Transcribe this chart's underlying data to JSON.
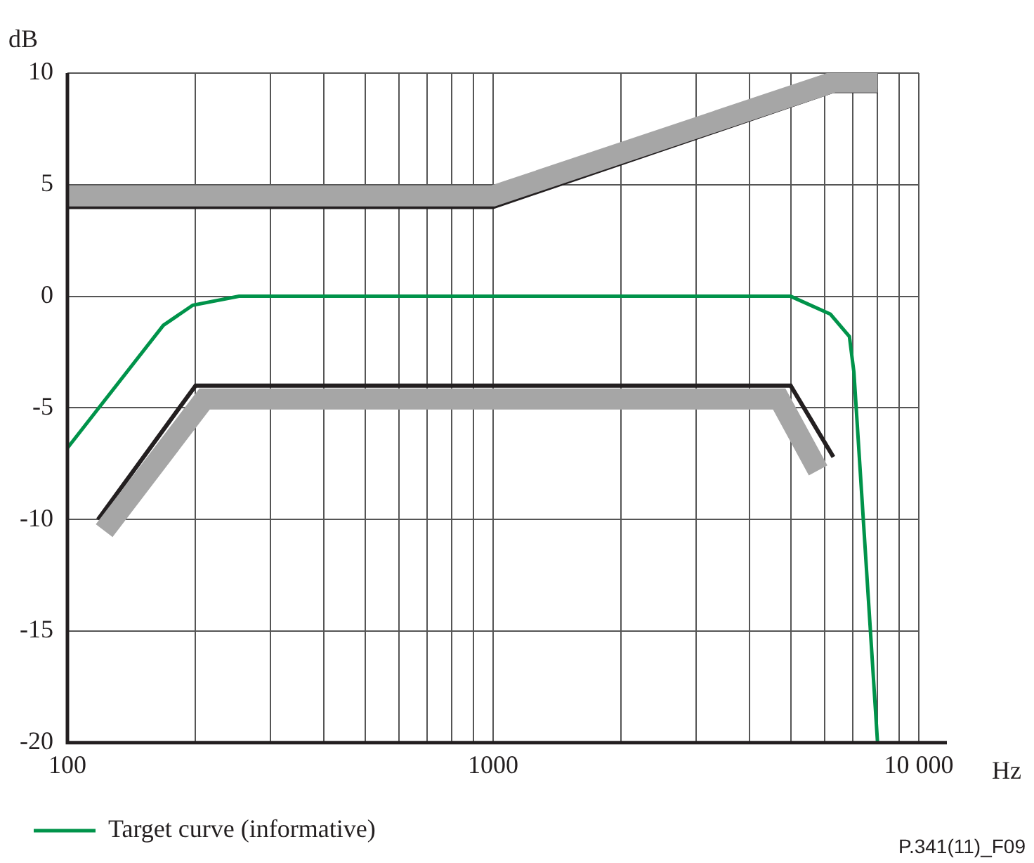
{
  "chart_data": {
    "type": "line",
    "xlabel": "Hz",
    "ylabel": "dB",
    "log": "x",
    "series": [
      {
        "color": "#a6a6a6",
        "x": [
          100,
          1000,
          6300,
          8000
        ],
        "values": [
          4.5,
          4.5,
          9.6,
          9.6
        ]
      },
      {
        "color": "#a6a6a6",
        "x": [
          122,
          210,
          4700,
          5800
        ],
        "values": [
          -10.5,
          -4.6,
          -4.6,
          -7.8
        ]
      },
      {
        "color": "#231f20",
        "x": [
          100,
          1000,
          6300,
          8000
        ],
        "values": [
          4,
          4,
          9.2,
          9.2
        ]
      },
      {
        "color": "#231f20",
        "x": [
          118,
          200,
          5000,
          6300
        ],
        "values": [
          -10,
          -4,
          -4,
          -7.2
        ]
      },
      {
        "name": "Target curve (informative)",
        "color": "#00934a",
        "x": [
          100,
          168,
          197,
          253,
          5000,
          6200,
          6870,
          7040,
          8000
        ],
        "values": [
          -6.8,
          -1.3,
          -0.4,
          0,
          0,
          -0.8,
          -1.8,
          -3.4,
          -20
        ]
      }
    ],
    "xlim": [
      100,
      10000
    ],
    "xticks": [
      100,
      {
        "value": 200,
        "label": null
      },
      {
        "value": 300,
        "label": null
      },
      {
        "value": 400,
        "label": null
      },
      {
        "value": 500,
        "label": null
      },
      {
        "value": 600,
        "label": null
      },
      {
        "value": 700,
        "label": null
      },
      {
        "value": 800,
        "label": null
      },
      {
        "value": 900,
        "label": null
      },
      1000,
      {
        "value": 2000,
        "label": null
      },
      {
        "value": 3000,
        "label": null
      },
      {
        "value": 4000,
        "label": null
      },
      {
        "value": 5000,
        "label": null
      },
      {
        "value": 6000,
        "label": null
      },
      {
        "value": 7000,
        "label": null
      },
      {
        "value": 8000,
        "label": null
      },
      {
        "value": 9000,
        "label": null
      },
      {
        "value": 10000,
        "label": "10 000"
      }
    ],
    "ylim": [
      -20,
      10
    ],
    "yticks": [
      -20,
      -15,
      -10,
      -5,
      0,
      5,
      10
    ],
    "grid": true,
    "legend": "bottom left",
    "line_style": "solid",
    "annotations": [
      "P.341(11)_F09"
    ]
  }
}
